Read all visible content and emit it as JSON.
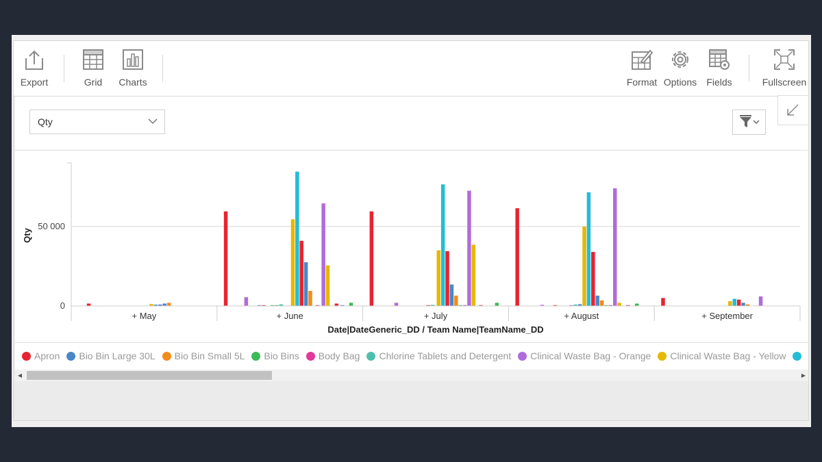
{
  "toolbar": {
    "left": [
      {
        "label": "Export",
        "icon": "export-icon"
      },
      {
        "label": "Grid",
        "icon": "grid-icon"
      },
      {
        "label": "Charts",
        "icon": "charts-icon"
      }
    ],
    "right": [
      {
        "label": "Format",
        "icon": "format-icon"
      },
      {
        "label": "Options",
        "icon": "options-icon"
      },
      {
        "label": "Fields",
        "icon": "fields-icon"
      },
      {
        "label": "Fullscreen",
        "icon": "fullscreen-icon"
      }
    ]
  },
  "measure_select": {
    "value": "Qty"
  },
  "filter_icon": "filter-icon",
  "collapse_icon": "collapse-icon",
  "chart_data": {
    "type": "bar",
    "ylabel": "Qty",
    "xlabel": "Date|DateGeneric_DD / Team Name|TeamName_DD",
    "ylim": [
      0,
      90000
    ],
    "yticks": [
      {
        "value": 0,
        "label": "0"
      },
      {
        "value": 50000,
        "label": "50 000"
      }
    ],
    "grid": true,
    "categories": [
      "+ May",
      "+ June",
      "+ July",
      "+ August",
      "+ September"
    ],
    "bars": [
      {
        "c": 0,
        "o": 0.12,
        "v": 1500,
        "color": "#e8242f"
      },
      {
        "c": 0,
        "o": 0.55,
        "v": 1200,
        "color": "#e6b800"
      },
      {
        "c": 0,
        "o": 0.58,
        "v": 800,
        "color": "#4a86c8"
      },
      {
        "c": 0,
        "o": 0.61,
        "v": 900,
        "color": "#4a86c8"
      },
      {
        "c": 0,
        "o": 0.64,
        "v": 1500,
        "color": "#4a86c8"
      },
      {
        "c": 0,
        "o": 0.67,
        "v": 2000,
        "color": "#f28c1a"
      },
      {
        "c": 1,
        "o": 0.06,
        "v": 59500,
        "color": "#e8242f"
      },
      {
        "c": 1,
        "o": 0.2,
        "v": 5500,
        "color": "#b06cdb"
      },
      {
        "c": 1,
        "o": 0.29,
        "v": 400,
        "color": "#4a86c8"
      },
      {
        "c": 1,
        "o": 0.32,
        "v": 300,
        "color": "#e8242f"
      },
      {
        "c": 1,
        "o": 0.38,
        "v": 500,
        "color": "#3dba57"
      },
      {
        "c": 1,
        "o": 0.41,
        "v": 400,
        "color": "#3dba57"
      },
      {
        "c": 1,
        "o": 0.44,
        "v": 1000,
        "color": "#4fbfad"
      },
      {
        "c": 1,
        "o": 0.52,
        "v": 54500,
        "color": "#e6b800"
      },
      {
        "c": 1,
        "o": 0.55,
        "v": 84500,
        "color": "#26bcd7"
      },
      {
        "c": 1,
        "o": 0.58,
        "v": 41000,
        "color": "#e8242f"
      },
      {
        "c": 1,
        "o": 0.61,
        "v": 27500,
        "color": "#4a86c8"
      },
      {
        "c": 1,
        "o": 0.64,
        "v": 9500,
        "color": "#f28c1a"
      },
      {
        "c": 1,
        "o": 0.69,
        "v": 200,
        "color": "#e2399a"
      },
      {
        "c": 1,
        "o": 0.73,
        "v": 64500,
        "color": "#b06cdb"
      },
      {
        "c": 1,
        "o": 0.76,
        "v": 25500,
        "color": "#e6b800"
      },
      {
        "c": 1,
        "o": 0.82,
        "v": 1500,
        "color": "#e8242f"
      },
      {
        "c": 1,
        "o": 0.86,
        "v": 500,
        "color": "#4a86c8"
      },
      {
        "c": 1,
        "o": 0.92,
        "v": 2000,
        "color": "#3dba57"
      },
      {
        "c": 2,
        "o": 0.06,
        "v": 59500,
        "color": "#e8242f"
      },
      {
        "c": 2,
        "o": 0.23,
        "v": 2000,
        "color": "#b06cdb"
      },
      {
        "c": 2,
        "o": 0.45,
        "v": 500,
        "color": "#e8242f"
      },
      {
        "c": 2,
        "o": 0.48,
        "v": 700,
        "color": "#4fbfad"
      },
      {
        "c": 2,
        "o": 0.52,
        "v": 35000,
        "color": "#e6b800"
      },
      {
        "c": 2,
        "o": 0.55,
        "v": 76500,
        "color": "#26bcd7"
      },
      {
        "c": 2,
        "o": 0.58,
        "v": 34500,
        "color": "#e8242f"
      },
      {
        "c": 2,
        "o": 0.61,
        "v": 13500,
        "color": "#4a86c8"
      },
      {
        "c": 2,
        "o": 0.64,
        "v": 6500,
        "color": "#f28c1a"
      },
      {
        "c": 2,
        "o": 0.67,
        "v": 300,
        "color": "#3dba57"
      },
      {
        "c": 2,
        "o": 0.7,
        "v": 200,
        "color": "#e2399a"
      },
      {
        "c": 2,
        "o": 0.73,
        "v": 72500,
        "color": "#b06cdb"
      },
      {
        "c": 2,
        "o": 0.76,
        "v": 38500,
        "color": "#e6b800"
      },
      {
        "c": 2,
        "o": 0.81,
        "v": 300,
        "color": "#e8242f"
      },
      {
        "c": 2,
        "o": 0.92,
        "v": 2000,
        "color": "#3dba57"
      },
      {
        "c": 3,
        "o": 0.06,
        "v": 61500,
        "color": "#e8242f"
      },
      {
        "c": 3,
        "o": 0.23,
        "v": 700,
        "color": "#b06cdb"
      },
      {
        "c": 3,
        "o": 0.32,
        "v": 400,
        "color": "#e8242f"
      },
      {
        "c": 3,
        "o": 0.43,
        "v": 500,
        "color": "#b06cdb"
      },
      {
        "c": 3,
        "o": 0.46,
        "v": 900,
        "color": "#4fbfad"
      },
      {
        "c": 3,
        "o": 0.49,
        "v": 1100,
        "color": "#4a86c8"
      },
      {
        "c": 3,
        "o": 0.52,
        "v": 50000,
        "color": "#e6b800"
      },
      {
        "c": 3,
        "o": 0.55,
        "v": 71500,
        "color": "#26bcd7"
      },
      {
        "c": 3,
        "o": 0.58,
        "v": 34000,
        "color": "#e8242f"
      },
      {
        "c": 3,
        "o": 0.61,
        "v": 6500,
        "color": "#4a86c8"
      },
      {
        "c": 3,
        "o": 0.64,
        "v": 3500,
        "color": "#f28c1a"
      },
      {
        "c": 3,
        "o": 0.67,
        "v": 300,
        "color": "#3dba57"
      },
      {
        "c": 3,
        "o": 0.7,
        "v": 300,
        "color": "#e2399a"
      },
      {
        "c": 3,
        "o": 0.73,
        "v": 74000,
        "color": "#b06cdb"
      },
      {
        "c": 3,
        "o": 0.76,
        "v": 2000,
        "color": "#e6b800"
      },
      {
        "c": 3,
        "o": 0.82,
        "v": 500,
        "color": "#e8242f"
      },
      {
        "c": 3,
        "o": 0.88,
        "v": 1500,
        "color": "#3dba57"
      },
      {
        "c": 4,
        "o": 0.06,
        "v": 5000,
        "color": "#e8242f"
      },
      {
        "c": 4,
        "o": 0.52,
        "v": 3000,
        "color": "#e6b800"
      },
      {
        "c": 4,
        "o": 0.55,
        "v": 4500,
        "color": "#26bcd7"
      },
      {
        "c": 4,
        "o": 0.58,
        "v": 4000,
        "color": "#e8242f"
      },
      {
        "c": 4,
        "o": 0.61,
        "v": 2000,
        "color": "#4a86c8"
      },
      {
        "c": 4,
        "o": 0.64,
        "v": 1000,
        "color": "#f28c1a"
      },
      {
        "c": 4,
        "o": 0.73,
        "v": 6000,
        "color": "#b06cdb"
      }
    ]
  },
  "legend": [
    {
      "label": "Apron",
      "color": "#e8242f"
    },
    {
      "label": "Bio Bin Large 30L",
      "color": "#4a86c8"
    },
    {
      "label": "Bio Bin Small 5L",
      "color": "#f28c1a"
    },
    {
      "label": "Bio Bins",
      "color": "#3dba57"
    },
    {
      "label": "Body Bag",
      "color": "#e2399a"
    },
    {
      "label": "Chlorine Tablets and Detergent",
      "color": "#4fbfad"
    },
    {
      "label": "Clinical Waste Bag - Orange",
      "color": "#b06cdb"
    },
    {
      "label": "Clinical Waste Bag - Yellow",
      "color": "#e6b800"
    },
    {
      "label": "",
      "color": "#26bcd7"
    }
  ]
}
